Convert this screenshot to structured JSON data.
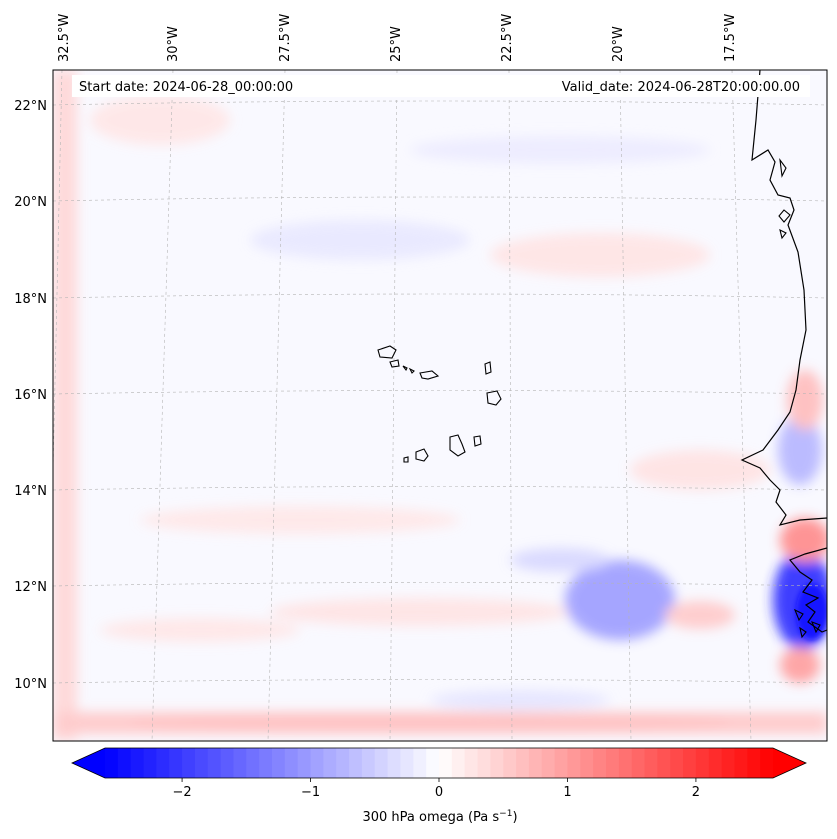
{
  "map": {
    "header_left": "Start date: 2024-06-28_00:00:00",
    "header_right": "Valid_date: 2024-06-28T20:00:00.00",
    "longitude_labels": [
      "32.5°W",
      "30°W",
      "27.5°W",
      "25°W",
      "22.5°W",
      "20°W",
      "17.5°W"
    ],
    "latitude_labels": [
      "22°N",
      "20°N",
      "18°N",
      "16°N",
      "14°N",
      "12°N",
      "10°N"
    ],
    "field": "300 hPa omega",
    "colors": {
      "negative": "#0000ff",
      "zero": "#ffffff",
      "positive": "#ff0000",
      "coastline": "#000000",
      "gridline": "#b0b0b0"
    }
  },
  "colorbar": {
    "min": -2.6,
    "max": 2.6,
    "tick_values": [
      -2,
      -1,
      0,
      1,
      2
    ],
    "tick_labels": [
      "−2",
      "−1",
      "0",
      "1",
      "2"
    ],
    "label_prefix": "300 hPa omega (Pa s",
    "label_exponent": "−1",
    "label_suffix": ")"
  }
}
